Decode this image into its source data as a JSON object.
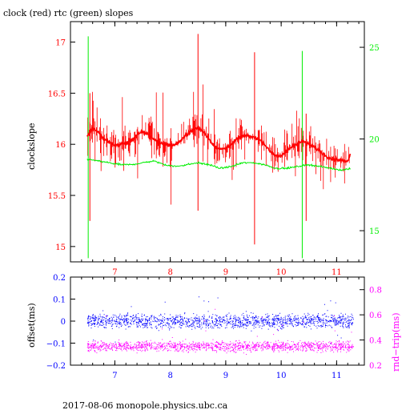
{
  "title": "clock (red) rtc (green) slopes",
  "footer": "2017-08-06  monopole.physics.ubc.ca",
  "colors": {
    "red": "#ff0000",
    "green": "#00ee00",
    "blue": "#0000ff",
    "magenta": "#ff00ff",
    "axis": "#000000"
  },
  "chart_data": [
    {
      "type": "line",
      "title": "clock (red) rtc (green) slopes",
      "xlabel": "",
      "ylabel": "clockslope",
      "y2label": "",
      "xlim": [
        6.2,
        11.5
      ],
      "ylim": [
        14.85,
        17.2
      ],
      "y2lim": [
        13.3,
        26.4
      ],
      "x_ticks": [
        "7",
        "8",
        "9",
        "10",
        "11"
      ],
      "y_ticks": [
        "15",
        "15.5",
        "16",
        "16.5",
        "17"
      ],
      "y2_ticks": [
        "15",
        "20",
        "25"
      ],
      "series": [
        {
          "axis": "left",
          "color": "#ff0000",
          "x": [
            6.5,
            6.6,
            6.7,
            6.8,
            6.9,
            7.0,
            7.1,
            7.2,
            7.3,
            7.4,
            7.5,
            7.6,
            7.7,
            7.8,
            7.9,
            8.0,
            8.1,
            8.2,
            8.3,
            8.4,
            8.5,
            8.6,
            8.7,
            8.8,
            8.9,
            9.0,
            9.1,
            9.2,
            9.3,
            9.4,
            9.5,
            9.6,
            9.7,
            9.8,
            9.9,
            10.0,
            10.1,
            10.2,
            10.3,
            10.4,
            10.5,
            10.6,
            10.7,
            10.8,
            10.9,
            11.0,
            11.1,
            11.2,
            11.25
          ],
          "y": [
            16.08,
            16.16,
            16.12,
            16.05,
            16.02,
            15.99,
            16.0,
            16.01,
            16.04,
            16.09,
            16.12,
            16.1,
            16.05,
            16.02,
            16.0,
            15.99,
            16.0,
            16.04,
            16.1,
            16.14,
            16.16,
            16.12,
            16.05,
            15.98,
            15.95,
            15.96,
            16.0,
            16.05,
            16.08,
            16.08,
            16.07,
            16.05,
            16.0,
            15.93,
            15.89,
            15.88,
            15.93,
            15.98,
            16.01,
            16.03,
            16.0,
            15.97,
            15.93,
            15.89,
            15.86,
            15.85,
            15.84,
            15.83,
            15.92
          ]
        },
        {
          "axis": "right",
          "color": "#00ee00",
          "x": [
            6.5,
            6.7,
            6.9,
            7.1,
            7.3,
            7.5,
            7.7,
            7.9,
            8.1,
            8.3,
            8.5,
            8.7,
            8.9,
            9.1,
            9.3,
            9.5,
            9.7,
            9.9,
            10.1,
            10.3,
            10.5,
            10.7,
            10.9,
            11.1,
            11.25
          ],
          "y": [
            18.9,
            18.8,
            18.7,
            18.6,
            18.6,
            18.7,
            18.8,
            18.6,
            18.5,
            18.6,
            18.7,
            18.6,
            18.4,
            18.5,
            18.7,
            18.7,
            18.6,
            18.4,
            18.4,
            18.5,
            18.6,
            18.5,
            18.4,
            18.3,
            18.4
          ]
        }
      ],
      "annotations_spikes": [
        {
          "axis": "right",
          "x": 6.52,
          "y_low": 13.5,
          "y_high": 25.6
        },
        {
          "axis": "right",
          "x": 10.38,
          "y_low": 13.5,
          "y_high": 24.8
        },
        {
          "axis": "left",
          "x": 8.5,
          "y_low": 15.35,
          "y_high": 17.08
        },
        {
          "axis": "left",
          "x": 9.52,
          "y_low": 15.02,
          "y_high": 16.9
        },
        {
          "axis": "left",
          "x": 6.55,
          "y_low": 15.25,
          "y_high": 16.5
        },
        {
          "axis": "left",
          "x": 10.45,
          "y_low": 15.25,
          "y_high": 16.3
        }
      ]
    },
    {
      "type": "scatter",
      "xlabel": "",
      "ylabel": "offset(ms)",
      "y2label": "rnd−trip(ms)",
      "xlim": [
        6.2,
        11.5
      ],
      "ylim": [
        -0.2,
        0.2
      ],
      "y2lim": [
        0.2,
        0.9
      ],
      "x_ticks": [
        "7",
        "8",
        "9",
        "10",
        "11"
      ],
      "y_ticks": [
        "−0.2",
        "−0.1",
        "0",
        "0.1",
        "0.2"
      ],
      "y2_ticks": [
        "0.2",
        "0.4",
        "0.6",
        "0.8"
      ],
      "series": [
        {
          "axis": "left",
          "color": "#0000ff",
          "x_range": [
            6.5,
            11.3
          ],
          "y_center": 0.0,
          "y_spread": 0.035
        },
        {
          "axis": "right",
          "color": "#ff00ff",
          "x_range": [
            6.5,
            11.3
          ],
          "y_center": 0.35,
          "y_spread": 0.05
        }
      ]
    }
  ]
}
